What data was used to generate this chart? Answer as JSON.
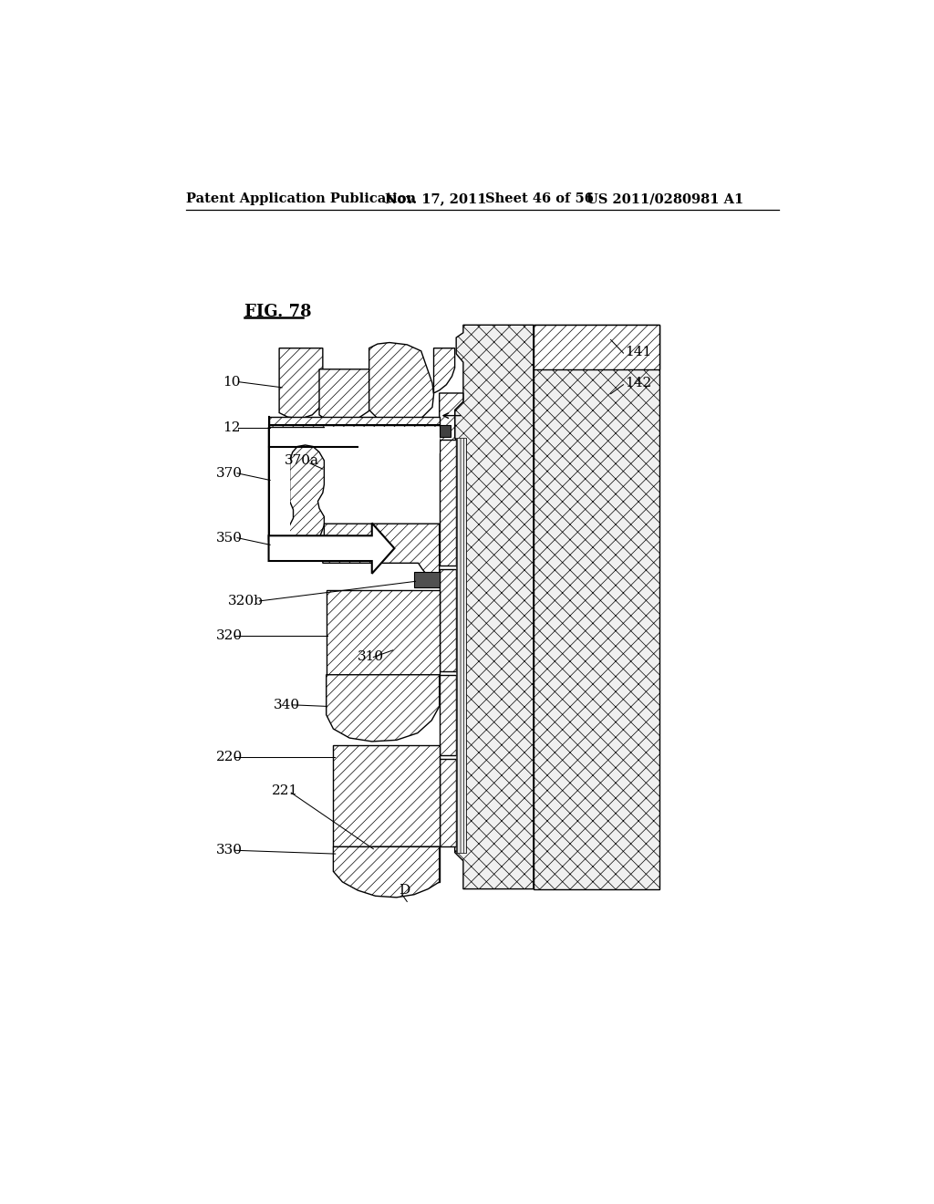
{
  "title_header": "Patent Application Publication",
  "date_header": "Nov. 17, 2011",
  "sheet_header": "Sheet 46 of 56",
  "patent_header": "US 2011/0280981 A1",
  "fig_label": "FIG. 78",
  "background_color": "#ffffff"
}
